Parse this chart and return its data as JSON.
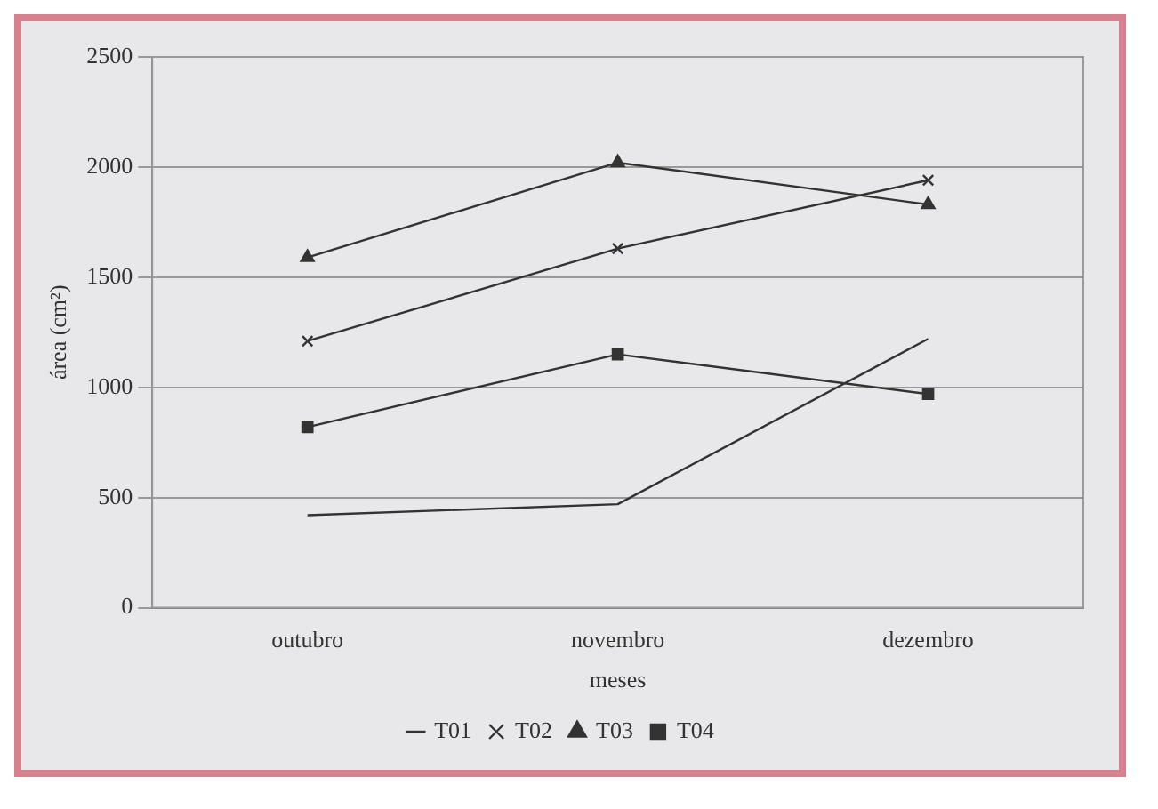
{
  "chart_data": {
    "type": "line",
    "xlabel": "meses",
    "ylabel": "área (cm²)",
    "categories": [
      "outubro",
      "novembro",
      "dezembro"
    ],
    "series": [
      {
        "name": "T01",
        "color": "#333333",
        "marker": "none",
        "values": [
          420,
          470,
          1220
        ]
      },
      {
        "name": "T02",
        "color": "#333333",
        "marker": "cross",
        "values": [
          1210,
          1630,
          1940
        ]
      },
      {
        "name": "T03",
        "color": "#333333",
        "marker": "triangle",
        "values": [
          1590,
          2020,
          1830
        ]
      },
      {
        "name": "T04",
        "color": "#333333",
        "marker": "square",
        "values": [
          820,
          1150,
          970
        ]
      }
    ],
    "ylim": [
      0,
      2500
    ],
    "yticks": [
      0,
      500,
      1000,
      1500,
      2000,
      2500
    ],
    "grid": "y",
    "legend": "bottom",
    "line_style": "solid"
  }
}
